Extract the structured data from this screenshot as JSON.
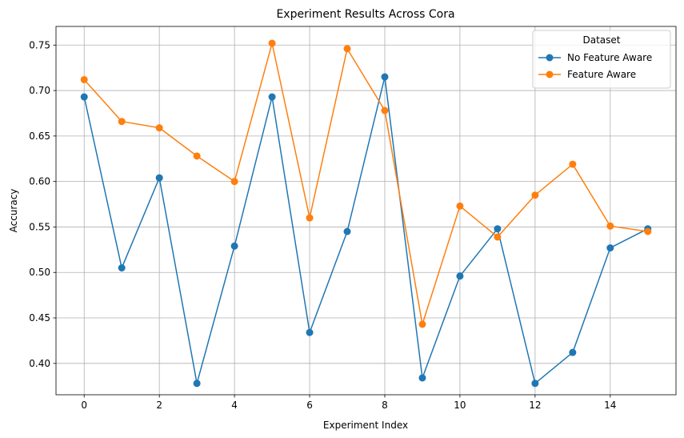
{
  "chart_data": {
    "type": "line",
    "title": "Experiment Results Across Cora",
    "xlabel": "Experiment Index",
    "ylabel": "Accuracy",
    "x": [
      0,
      1,
      2,
      3,
      4,
      5,
      6,
      7,
      8,
      9,
      10,
      11,
      12,
      13,
      14,
      15
    ],
    "xlim": [
      -0.75,
      15.75
    ],
    "ylim": [
      0.3655,
      0.7705
    ],
    "xticks": [
      0,
      2,
      4,
      6,
      8,
      10,
      12,
      14
    ],
    "xtick_labels": [
      "0",
      "2",
      "4",
      "6",
      "8",
      "10",
      "12",
      "14"
    ],
    "yticks": [
      0.4,
      0.45,
      0.5,
      0.55,
      0.6,
      0.65,
      0.7,
      0.75
    ],
    "ytick_labels": [
      "0.40",
      "0.45",
      "0.50",
      "0.55",
      "0.60",
      "0.65",
      "0.70",
      "0.75"
    ],
    "grid": true,
    "legend": {
      "title": "Dataset",
      "placement": "top-right"
    },
    "series": [
      {
        "name": "No Feature Aware",
        "color": "#1f77b4",
        "values": [
          0.693,
          0.505,
          0.604,
          0.378,
          0.529,
          0.693,
          0.434,
          0.545,
          0.715,
          0.384,
          0.496,
          0.548,
          0.378,
          0.412,
          0.527,
          0.548
        ]
      },
      {
        "name": "Feature Aware",
        "color": "#ff7f0e",
        "values": [
          0.712,
          0.666,
          0.659,
          0.628,
          0.6,
          0.752,
          0.56,
          0.746,
          0.678,
          0.443,
          0.573,
          0.539,
          0.585,
          0.619,
          0.551,
          0.545
        ]
      }
    ]
  }
}
